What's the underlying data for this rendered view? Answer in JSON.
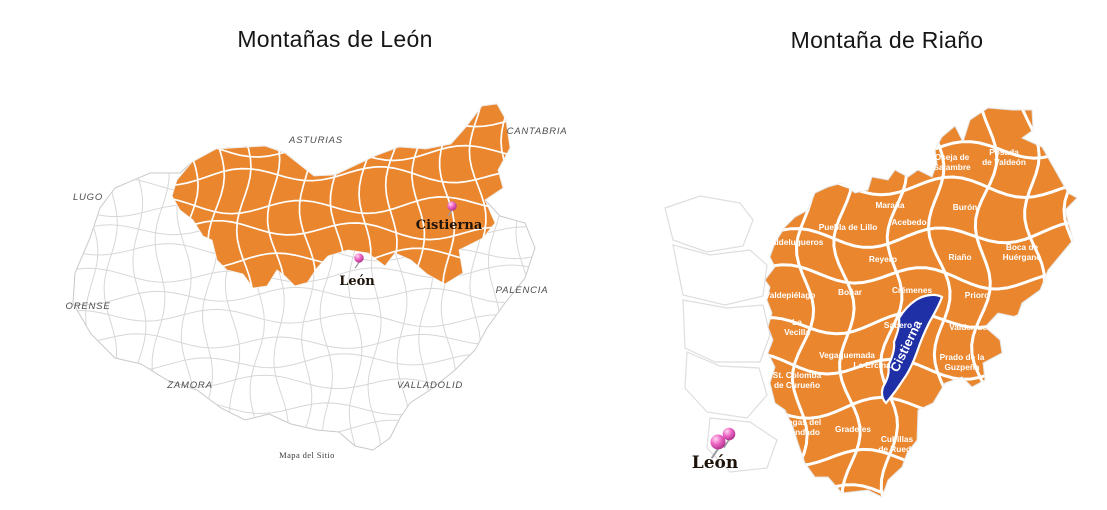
{
  "left_map": {
    "title": "Montañas de León",
    "province_labels": [
      {
        "text": "ASTURIAS"
      },
      {
        "text": "CANTABRIA"
      },
      {
        "text": "LUGO"
      },
      {
        "text": "ORENSE"
      },
      {
        "text": "PALENCIA"
      },
      {
        "text": "ZAMORA"
      },
      {
        "text": "VALLADOLID"
      }
    ],
    "markers": [
      {
        "name": "Cistierna"
      },
      {
        "name": "León"
      }
    ],
    "footer": "Mapa del Sitio"
  },
  "right_map": {
    "title": "Montaña de Riaño",
    "highlighted": {
      "name": "Cistierna"
    },
    "labels": [
      {
        "l1": "Oseja de",
        "l2": "Sajambre"
      },
      {
        "l1": "Posada",
        "l2": "de Valdeón"
      },
      {
        "l1": "Maraña"
      },
      {
        "l1": "Acebedo"
      },
      {
        "l1": "Burón"
      },
      {
        "l1": "Boca de",
        "l2": "Huérgano"
      },
      {
        "l1": "Puebla de Lillo"
      },
      {
        "l1": "Valdelugueros"
      },
      {
        "l1": "Reyero"
      },
      {
        "l1": "Riaño"
      },
      {
        "l1": "Valdepiélago"
      },
      {
        "l1": "Boñar"
      },
      {
        "l1": "Crémenes"
      },
      {
        "l1": "Prioro"
      },
      {
        "l1": "Sabero"
      },
      {
        "l1": "La",
        "l2": "Vecilla"
      },
      {
        "l1": "Valderrueda"
      },
      {
        "l1": "Vegaquemada"
      },
      {
        "l1": "La Ercina"
      },
      {
        "l1": "Prado de la",
        "l2": "Guzpeña"
      },
      {
        "l1": "St. Colomba",
        "l2": "de Curueño"
      },
      {
        "l1": "Vegas del",
        "l2": "Condado"
      },
      {
        "l1": "Gradefes"
      },
      {
        "l1": "Cubillas",
        "l2": "de Rueda"
      }
    ],
    "city_marker": {
      "name": "León"
    }
  },
  "colors": {
    "region_orange": "#E9862E",
    "highlight_blue": "#1F2FA6",
    "pin_pink": "#F06AC8",
    "border_gray": "#d6d6d6"
  }
}
